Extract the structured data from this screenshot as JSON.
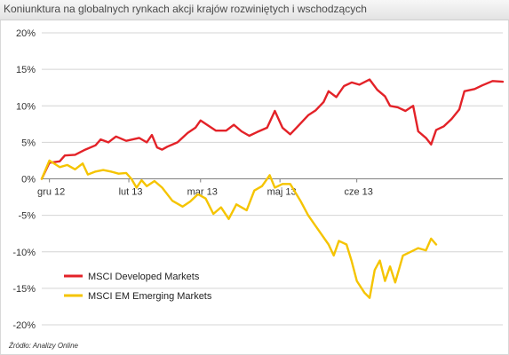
{
  "header": {
    "title": "Koniunktura na globalnych rynkach akcji krajów rozwiniętych i wschodzących"
  },
  "footer": {
    "source": "Źródło: Analizy Online"
  },
  "chart_data": {
    "type": "line",
    "title": "Koniunktura na globalnych rynkach akcji krajów rozwiniętych i wschodzących",
    "xlabel": "",
    "ylabel": "",
    "ylim": [
      -20,
      20
    ],
    "ytick_step": 5,
    "ytick_suffix": "%",
    "xlim": [
      "2012-12-28",
      "2013-06-26"
    ],
    "xticks": [
      {
        "date": "2012-12-31",
        "label": "gru 12"
      },
      {
        "date": "2013-01-31",
        "label": "lut 13"
      },
      {
        "date": "2013-02-28",
        "label": "mar 13"
      },
      {
        "date": "2013-03-31",
        "label": "maj 13"
      },
      {
        "date": "2013-04-30",
        "label": "cze 13"
      }
    ],
    "grid": "horizontal",
    "legend": "bottom-left",
    "series": [
      {
        "name": "MSCI Developed Markets",
        "color": "#e32228",
        "points": [
          [
            "2012-12-28",
            0.0
          ],
          [
            "2012-12-31",
            2.2
          ],
          [
            "2013-01-04",
            2.4
          ],
          [
            "2013-01-06",
            3.2
          ],
          [
            "2013-01-10",
            3.3
          ],
          [
            "2013-01-14",
            4.0
          ],
          [
            "2013-01-18",
            4.6
          ],
          [
            "2013-01-20",
            5.4
          ],
          [
            "2013-01-23",
            5.0
          ],
          [
            "2013-01-26",
            5.8
          ],
          [
            "2013-01-30",
            5.2
          ],
          [
            "2013-02-04",
            5.6
          ],
          [
            "2013-02-07",
            5.0
          ],
          [
            "2013-02-09",
            6.0
          ],
          [
            "2013-02-11",
            4.3
          ],
          [
            "2013-02-13",
            4.0
          ],
          [
            "2013-02-15",
            4.4
          ],
          [
            "2013-02-19",
            5.0
          ],
          [
            "2013-02-23",
            6.3
          ],
          [
            "2013-02-26",
            7.0
          ],
          [
            "2013-02-28",
            8.0
          ],
          [
            "2013-03-03",
            7.3
          ],
          [
            "2013-03-06",
            6.6
          ],
          [
            "2013-03-10",
            6.6
          ],
          [
            "2013-03-13",
            7.4
          ],
          [
            "2013-03-16",
            6.5
          ],
          [
            "2013-03-19",
            5.9
          ],
          [
            "2013-03-22",
            6.4
          ],
          [
            "2013-03-26",
            7.0
          ],
          [
            "2013-03-29",
            9.3
          ],
          [
            "2013-04-01",
            7.0
          ],
          [
            "2013-04-04",
            6.1
          ],
          [
            "2013-04-07",
            7.2
          ],
          [
            "2013-04-11",
            8.7
          ],
          [
            "2013-04-14",
            9.4
          ],
          [
            "2013-04-17",
            10.5
          ],
          [
            "2013-04-19",
            12.0
          ],
          [
            "2013-04-22",
            11.2
          ],
          [
            "2013-04-25",
            12.7
          ],
          [
            "2013-04-28",
            13.2
          ],
          [
            "2013-05-01",
            12.9
          ],
          [
            "2013-05-05",
            13.6
          ],
          [
            "2013-05-08",
            12.2
          ],
          [
            "2013-05-11",
            11.3
          ],
          [
            "2013-05-13",
            10.0
          ],
          [
            "2013-05-16",
            9.8
          ],
          [
            "2013-05-19",
            9.3
          ],
          [
            "2013-05-22",
            10.0
          ],
          [
            "2013-05-24",
            6.5
          ],
          [
            "2013-05-27",
            5.6
          ],
          [
            "2013-05-29",
            4.7
          ],
          [
            "2013-05-31",
            6.7
          ],
          [
            "2013-06-03",
            7.2
          ],
          [
            "2013-06-06",
            8.2
          ],
          [
            "2013-06-09",
            9.5
          ],
          [
            "2013-06-11",
            12.0
          ],
          [
            "2013-06-15",
            12.3
          ],
          [
            "2013-06-18",
            12.8
          ],
          [
            "2013-06-22",
            13.4
          ],
          [
            "2013-06-26",
            13.3
          ]
        ]
      },
      {
        "name": "MSCI EM Emerging Markets",
        "color": "#f5c400",
        "points": [
          [
            "2012-12-28",
            0.0
          ],
          [
            "2012-12-31",
            2.5
          ],
          [
            "2013-01-04",
            1.6
          ],
          [
            "2013-01-07",
            1.9
          ],
          [
            "2013-01-10",
            1.3
          ],
          [
            "2013-01-13",
            2.1
          ],
          [
            "2013-01-15",
            0.6
          ],
          [
            "2013-01-18",
            1.0
          ],
          [
            "2013-01-21",
            1.2
          ],
          [
            "2013-01-24",
            1.0
          ],
          [
            "2013-01-27",
            0.7
          ],
          [
            "2013-01-30",
            0.8
          ],
          [
            "2013-02-01",
            0.0
          ],
          [
            "2013-02-03",
            -1.2
          ],
          [
            "2013-02-05",
            -0.2
          ],
          [
            "2013-02-07",
            -1.0
          ],
          [
            "2013-02-10",
            -0.3
          ],
          [
            "2013-02-13",
            -1.2
          ],
          [
            "2013-02-17",
            -3.0
          ],
          [
            "2013-02-21",
            -3.8
          ],
          [
            "2013-02-24",
            -3.1
          ],
          [
            "2013-02-27",
            -2.1
          ],
          [
            "2013-03-02",
            -2.7
          ],
          [
            "2013-03-05",
            -4.8
          ],
          [
            "2013-03-08",
            -3.9
          ],
          [
            "2013-03-11",
            -5.5
          ],
          [
            "2013-03-14",
            -3.5
          ],
          [
            "2013-03-18",
            -4.3
          ],
          [
            "2013-03-21",
            -1.6
          ],
          [
            "2013-03-24",
            -1.0
          ],
          [
            "2013-03-27",
            0.5
          ],
          [
            "2013-03-29",
            -1.2
          ],
          [
            "2013-04-01",
            -0.7
          ],
          [
            "2013-04-04",
            -0.7
          ],
          [
            "2013-04-08",
            -3.0
          ],
          [
            "2013-04-11",
            -5.0
          ],
          [
            "2013-04-15",
            -7.0
          ],
          [
            "2013-04-19",
            -9.0
          ],
          [
            "2013-04-21",
            -10.5
          ],
          [
            "2013-04-23",
            -8.5
          ],
          [
            "2013-04-26",
            -9.0
          ],
          [
            "2013-04-28",
            -11.3
          ],
          [
            "2013-04-30",
            -14.0
          ],
          [
            "2013-05-03",
            -15.6
          ],
          [
            "2013-05-05",
            -16.3
          ],
          [
            "2013-05-07",
            -12.5
          ],
          [
            "2013-05-09",
            -11.2
          ],
          [
            "2013-05-11",
            -14.0
          ],
          [
            "2013-05-13",
            -12.0
          ],
          [
            "2013-05-15",
            -14.2
          ],
          [
            "2013-05-18",
            -10.5
          ],
          [
            "2013-05-21",
            -10.0
          ],
          [
            "2013-05-24",
            -9.5
          ],
          [
            "2013-05-27",
            -9.8
          ],
          [
            "2013-05-29",
            -8.2
          ],
          [
            "2013-05-31",
            -9.0
          ]
        ]
      }
    ]
  }
}
